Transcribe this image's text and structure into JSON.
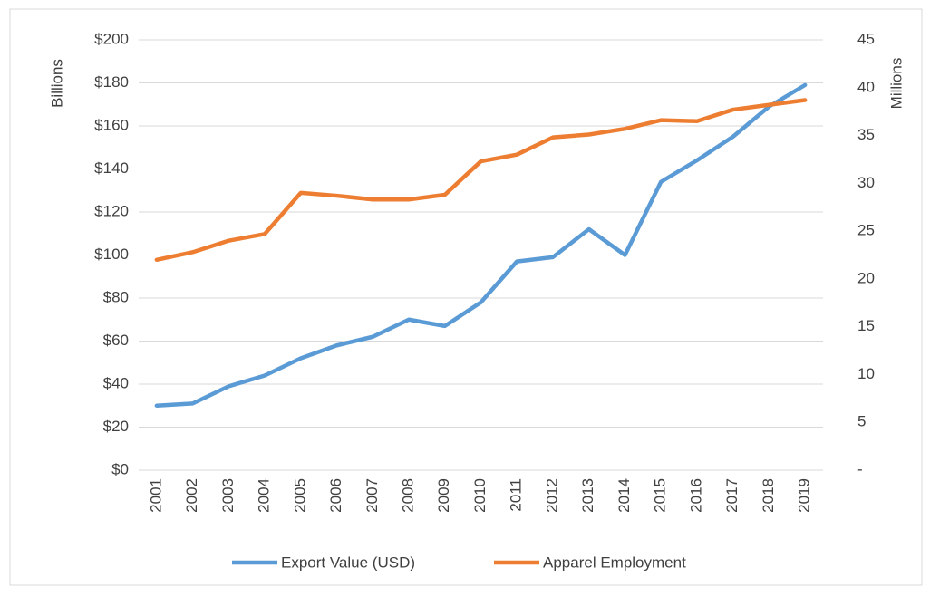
{
  "chart_data": {
    "type": "line",
    "y_label": "Billions",
    "y2_label": "Millions",
    "categories": [
      "2001",
      "2002",
      "2003",
      "2004",
      "2005",
      "2006",
      "2007",
      "2008",
      "2009",
      "2010",
      "2011",
      "2012",
      "2013",
      "2014",
      "2015",
      "2016",
      "2017",
      "2018",
      "2019"
    ],
    "series": [
      {
        "name": "Export Value (USD)",
        "color": "#5b9bd5",
        "values": [
          30,
          31,
          39,
          44,
          52,
          58,
          62,
          70,
          67,
          78,
          97,
          99,
          112,
          100,
          134,
          144,
          155,
          169,
          179
        ]
      },
      {
        "name": "Apparel Employment",
        "color": "#ed7d31",
        "axis": "y2",
        "values": [
          22,
          22.8,
          24,
          24.7,
          29,
          28.7,
          28.3,
          28.3,
          28.8,
          32.3,
          33,
          34.8,
          35.1,
          35.7,
          36.6,
          36.5,
          37.7,
          38.2,
          38.7
        ]
      }
    ],
    "ylim": [
      0,
      200
    ],
    "yticks": [
      {
        "value": 0,
        "label": "$0"
      },
      {
        "value": 20,
        "label": "$20"
      },
      {
        "value": 40,
        "label": "$40"
      },
      {
        "value": 60,
        "label": "$60"
      },
      {
        "value": 80,
        "label": "$80"
      },
      {
        "value": 100,
        "label": "$100"
      },
      {
        "value": 120,
        "label": "$120"
      },
      {
        "value": 140,
        "label": "$140"
      },
      {
        "value": 160,
        "label": "$160"
      },
      {
        "value": 180,
        "label": "$180"
      },
      {
        "value": 200,
        "label": "$200"
      }
    ],
    "y2lim": [
      0,
      45
    ],
    "y2ticks": [
      {
        "value": 0,
        "label": "-"
      },
      5,
      10,
      15,
      20,
      25,
      30,
      35,
      40,
      45
    ],
    "grid": true,
    "legend": "bottom"
  }
}
